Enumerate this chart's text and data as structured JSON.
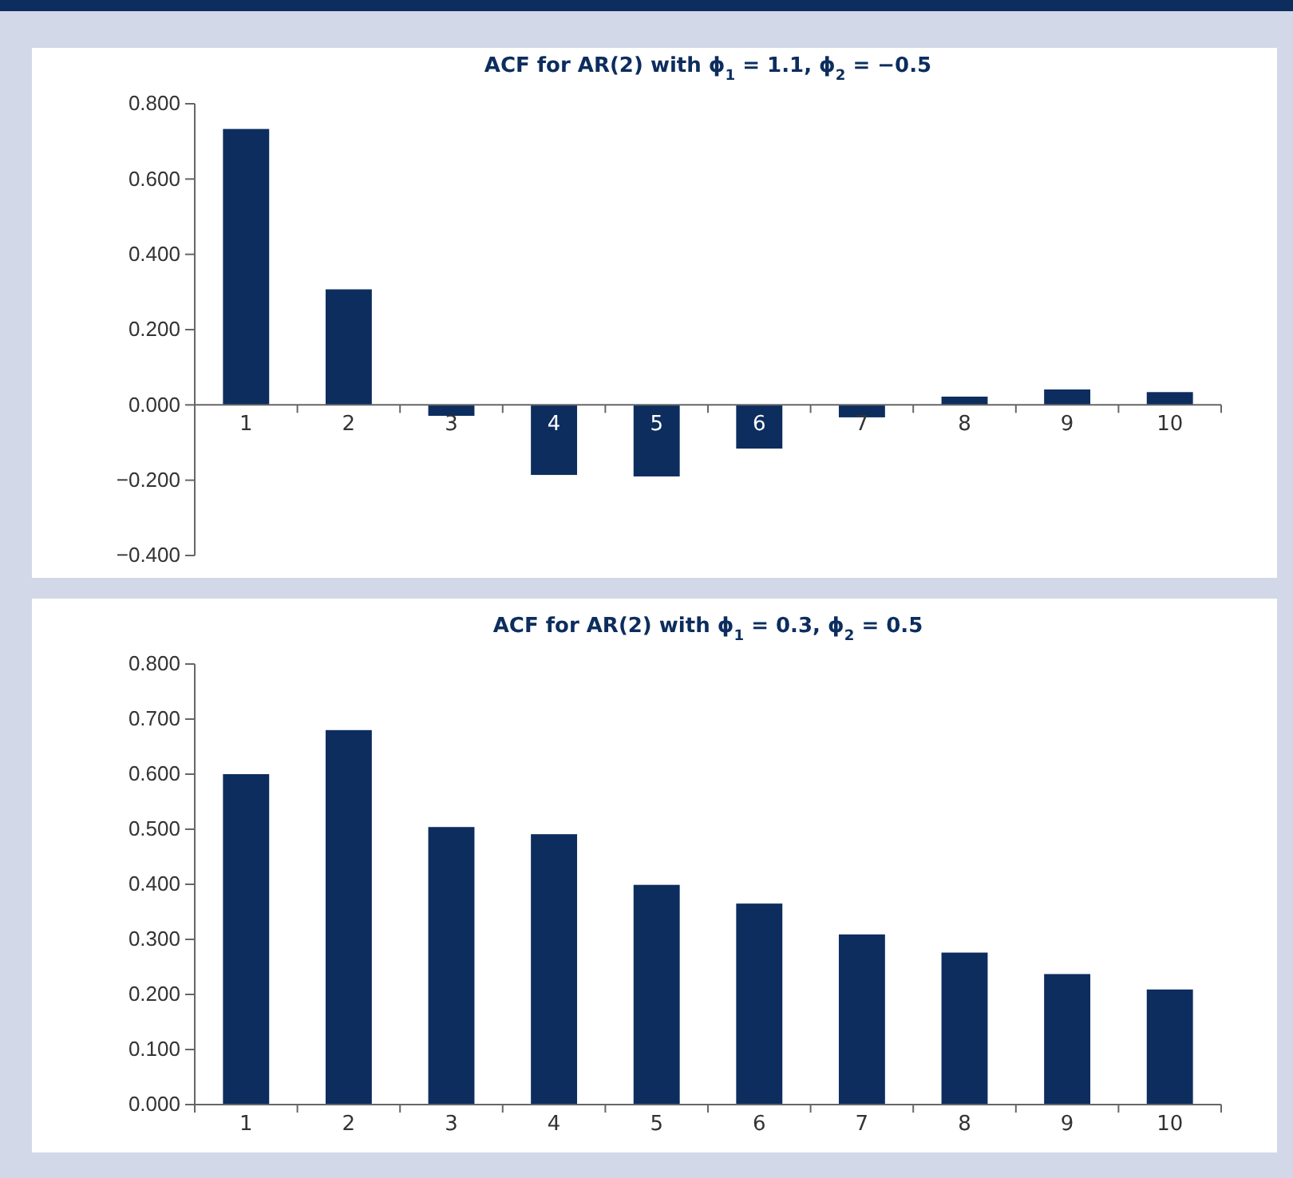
{
  "chart_data": [
    {
      "type": "bar",
      "title": "ACF for AR(2) with ϕ$_{1}$ = 1.1, ϕ$_{2}$ = −0.5",
      "categories": [
        "1",
        "2",
        "3",
        "4",
        "5",
        "6",
        "7",
        "8",
        "9",
        "10"
      ],
      "values": [
        0.733,
        0.307,
        -0.029,
        -0.186,
        -0.19,
        -0.116,
        -0.033,
        0.022,
        0.041,
        0.034
      ],
      "color": "#0c2d5e",
      "ylim": [
        -0.4,
        0.8
      ],
      "yticks": [
        {
          "value": -0.4,
          "label": "−0.400"
        },
        {
          "value": -0.2,
          "label": "−0.200"
        },
        {
          "value": 0,
          "label": "0.000"
        },
        {
          "value": 0.2,
          "label": "0.200"
        },
        {
          "value": 0.4,
          "label": "0.400"
        },
        {
          "value": 0.6,
          "label": "0.600"
        },
        {
          "value": 0.8,
          "label": "0.800"
        }
      ]
    },
    {
      "type": "bar",
      "title": "ACF for AR(2) with ϕ$_{1}$ = 0.3, ϕ$_{2}$ = 0.5",
      "categories": [
        "1",
        "2",
        "3",
        "4",
        "5",
        "6",
        "7",
        "8",
        "9",
        "10"
      ],
      "values": [
        0.6,
        0.68,
        0.504,
        0.491,
        0.399,
        0.365,
        0.309,
        0.276,
        0.237,
        0.209
      ],
      "color": "#0c2d5e",
      "ylim": [
        0,
        0.8
      ],
      "yticks": [
        {
          "value": 0,
          "label": "0.000"
        },
        {
          "value": 0.1,
          "label": "0.100"
        },
        {
          "value": 0.2,
          "label": "0.200"
        },
        {
          "value": 0.3,
          "label": "0.300"
        },
        {
          "value": 0.4,
          "label": "0.400"
        },
        {
          "value": 0.5,
          "label": "0.500"
        },
        {
          "value": 0.6,
          "label": "0.600"
        },
        {
          "value": 0.7,
          "label": "0.700"
        },
        {
          "value": 0.8,
          "label": "0.800"
        }
      ]
    }
  ]
}
